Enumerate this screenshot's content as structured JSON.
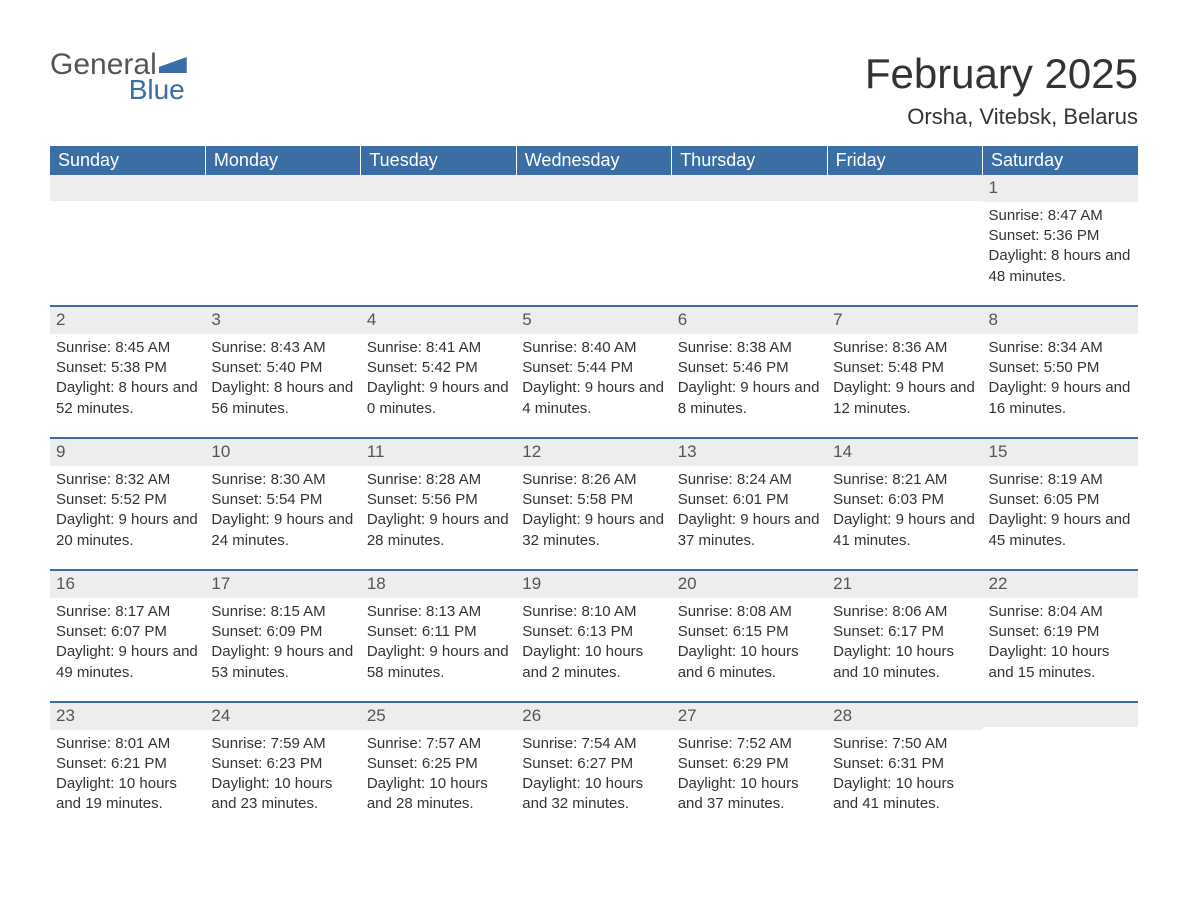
{
  "logo": {
    "text1": "General",
    "text2": "Blue"
  },
  "title": "February 2025",
  "location": "Orsha, Vitebsk, Belarus",
  "colors": {
    "header_bg": "#3b6ea5",
    "header_text": "#ffffff",
    "dayhead_bg": "#ededed",
    "dayhead_border": "#3b6ea5",
    "body_text": "#333333",
    "background": "#ffffff"
  },
  "day_headers": [
    "Sunday",
    "Monday",
    "Tuesday",
    "Wednesday",
    "Thursday",
    "Friday",
    "Saturday"
  ],
  "weeks": [
    [
      {
        "day": "",
        "sunrise": "",
        "sunset": "",
        "daylight": ""
      },
      {
        "day": "",
        "sunrise": "",
        "sunset": "",
        "daylight": ""
      },
      {
        "day": "",
        "sunrise": "",
        "sunset": "",
        "daylight": ""
      },
      {
        "day": "",
        "sunrise": "",
        "sunset": "",
        "daylight": ""
      },
      {
        "day": "",
        "sunrise": "",
        "sunset": "",
        "daylight": ""
      },
      {
        "day": "",
        "sunrise": "",
        "sunset": "",
        "daylight": ""
      },
      {
        "day": "1",
        "sunrise": "Sunrise: 8:47 AM",
        "sunset": "Sunset: 5:36 PM",
        "daylight": "Daylight: 8 hours and 48 minutes."
      }
    ],
    [
      {
        "day": "2",
        "sunrise": "Sunrise: 8:45 AM",
        "sunset": "Sunset: 5:38 PM",
        "daylight": "Daylight: 8 hours and 52 minutes."
      },
      {
        "day": "3",
        "sunrise": "Sunrise: 8:43 AM",
        "sunset": "Sunset: 5:40 PM",
        "daylight": "Daylight: 8 hours and 56 minutes."
      },
      {
        "day": "4",
        "sunrise": "Sunrise: 8:41 AM",
        "sunset": "Sunset: 5:42 PM",
        "daylight": "Daylight: 9 hours and 0 minutes."
      },
      {
        "day": "5",
        "sunrise": "Sunrise: 8:40 AM",
        "sunset": "Sunset: 5:44 PM",
        "daylight": "Daylight: 9 hours and 4 minutes."
      },
      {
        "day": "6",
        "sunrise": "Sunrise: 8:38 AM",
        "sunset": "Sunset: 5:46 PM",
        "daylight": "Daylight: 9 hours and 8 minutes."
      },
      {
        "day": "7",
        "sunrise": "Sunrise: 8:36 AM",
        "sunset": "Sunset: 5:48 PM",
        "daylight": "Daylight: 9 hours and 12 minutes."
      },
      {
        "day": "8",
        "sunrise": "Sunrise: 8:34 AM",
        "sunset": "Sunset: 5:50 PM",
        "daylight": "Daylight: 9 hours and 16 minutes."
      }
    ],
    [
      {
        "day": "9",
        "sunrise": "Sunrise: 8:32 AM",
        "sunset": "Sunset: 5:52 PM",
        "daylight": "Daylight: 9 hours and 20 minutes."
      },
      {
        "day": "10",
        "sunrise": "Sunrise: 8:30 AM",
        "sunset": "Sunset: 5:54 PM",
        "daylight": "Daylight: 9 hours and 24 minutes."
      },
      {
        "day": "11",
        "sunrise": "Sunrise: 8:28 AM",
        "sunset": "Sunset: 5:56 PM",
        "daylight": "Daylight: 9 hours and 28 minutes."
      },
      {
        "day": "12",
        "sunrise": "Sunrise: 8:26 AM",
        "sunset": "Sunset: 5:58 PM",
        "daylight": "Daylight: 9 hours and 32 minutes."
      },
      {
        "day": "13",
        "sunrise": "Sunrise: 8:24 AM",
        "sunset": "Sunset: 6:01 PM",
        "daylight": "Daylight: 9 hours and 37 minutes."
      },
      {
        "day": "14",
        "sunrise": "Sunrise: 8:21 AM",
        "sunset": "Sunset: 6:03 PM",
        "daylight": "Daylight: 9 hours and 41 minutes."
      },
      {
        "day": "15",
        "sunrise": "Sunrise: 8:19 AM",
        "sunset": "Sunset: 6:05 PM",
        "daylight": "Daylight: 9 hours and 45 minutes."
      }
    ],
    [
      {
        "day": "16",
        "sunrise": "Sunrise: 8:17 AM",
        "sunset": "Sunset: 6:07 PM",
        "daylight": "Daylight: 9 hours and 49 minutes."
      },
      {
        "day": "17",
        "sunrise": "Sunrise: 8:15 AM",
        "sunset": "Sunset: 6:09 PM",
        "daylight": "Daylight: 9 hours and 53 minutes."
      },
      {
        "day": "18",
        "sunrise": "Sunrise: 8:13 AM",
        "sunset": "Sunset: 6:11 PM",
        "daylight": "Daylight: 9 hours and 58 minutes."
      },
      {
        "day": "19",
        "sunrise": "Sunrise: 8:10 AM",
        "sunset": "Sunset: 6:13 PM",
        "daylight": "Daylight: 10 hours and 2 minutes."
      },
      {
        "day": "20",
        "sunrise": "Sunrise: 8:08 AM",
        "sunset": "Sunset: 6:15 PM",
        "daylight": "Daylight: 10 hours and 6 minutes."
      },
      {
        "day": "21",
        "sunrise": "Sunrise: 8:06 AM",
        "sunset": "Sunset: 6:17 PM",
        "daylight": "Daylight: 10 hours and 10 minutes."
      },
      {
        "day": "22",
        "sunrise": "Sunrise: 8:04 AM",
        "sunset": "Sunset: 6:19 PM",
        "daylight": "Daylight: 10 hours and 15 minutes."
      }
    ],
    [
      {
        "day": "23",
        "sunrise": "Sunrise: 8:01 AM",
        "sunset": "Sunset: 6:21 PM",
        "daylight": "Daylight: 10 hours and 19 minutes."
      },
      {
        "day": "24",
        "sunrise": "Sunrise: 7:59 AM",
        "sunset": "Sunset: 6:23 PM",
        "daylight": "Daylight: 10 hours and 23 minutes."
      },
      {
        "day": "25",
        "sunrise": "Sunrise: 7:57 AM",
        "sunset": "Sunset: 6:25 PM",
        "daylight": "Daylight: 10 hours and 28 minutes."
      },
      {
        "day": "26",
        "sunrise": "Sunrise: 7:54 AM",
        "sunset": "Sunset: 6:27 PM",
        "daylight": "Daylight: 10 hours and 32 minutes."
      },
      {
        "day": "27",
        "sunrise": "Sunrise: 7:52 AM",
        "sunset": "Sunset: 6:29 PM",
        "daylight": "Daylight: 10 hours and 37 minutes."
      },
      {
        "day": "28",
        "sunrise": "Sunrise: 7:50 AM",
        "sunset": "Sunset: 6:31 PM",
        "daylight": "Daylight: 10 hours and 41 minutes."
      },
      {
        "day": "",
        "sunrise": "",
        "sunset": "",
        "daylight": ""
      }
    ]
  ]
}
